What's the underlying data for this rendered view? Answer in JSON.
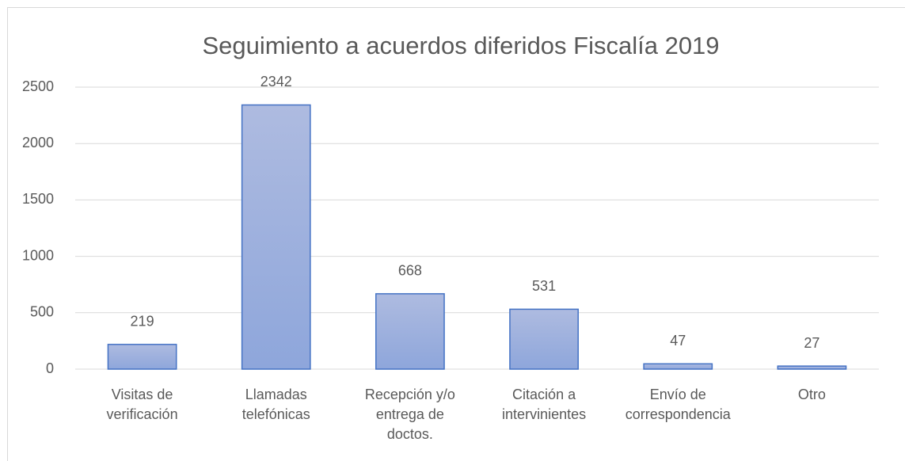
{
  "chart_data": {
    "type": "bar",
    "title": "Seguimiento a acuerdos diferidos Fiscalía 2019",
    "categories": [
      "Visitas de verificación",
      "Llamadas telefónicas",
      "Recepción y/o entrega de doctos.",
      "Citación a intervinientes",
      "Envío de correspondencia",
      "Otro"
    ],
    "values": [
      219,
      2342,
      668,
      531,
      47,
      27
    ],
    "color": "#4472c4",
    "ylim": [
      0,
      2500
    ],
    "yticks": [
      0,
      500,
      1000,
      1500,
      2000,
      2500
    ],
    "grid": true
  }
}
